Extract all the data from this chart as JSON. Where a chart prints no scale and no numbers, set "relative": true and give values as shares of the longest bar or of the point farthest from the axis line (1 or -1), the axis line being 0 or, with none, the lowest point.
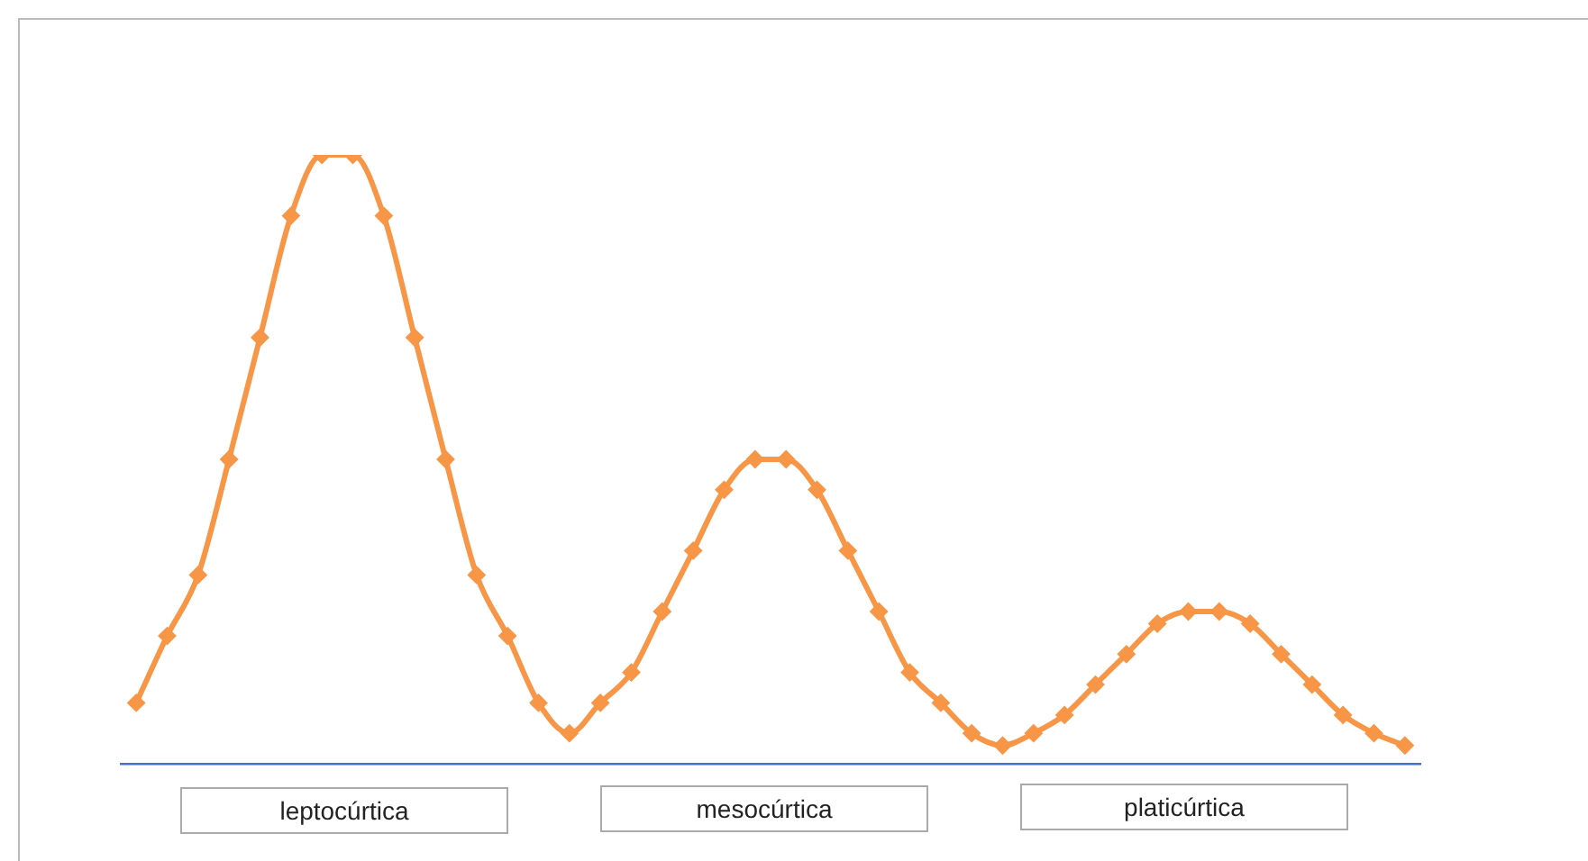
{
  "chart_data": {
    "type": "line",
    "relative": true,
    "marker": "diamond",
    "line_style": "solid",
    "grid": false,
    "legend": false,
    "categories": [
      null,
      null,
      null,
      null,
      null,
      null,
      null,
      null,
      null,
      null,
      null,
      null,
      null,
      null,
      null,
      null,
      null,
      null,
      null,
      null,
      null,
      null,
      null,
      null,
      null,
      null,
      null,
      null,
      null,
      null,
      null,
      null,
      null,
      null,
      null,
      null,
      null,
      null,
      null,
      null,
      null,
      null
    ],
    "series": [
      {
        "color": "#f79646",
        "values": [
          0.1,
          0.21,
          0.31,
          0.5,
          0.7,
          0.9,
          1,
          1,
          0.9,
          0.7,
          0.5,
          0.31,
          0.21,
          0.1,
          0.05,
          0.1,
          0.15,
          0.25,
          0.35,
          0.45,
          0.5,
          0.5,
          0.45,
          0.35,
          0.25,
          0.15,
          0.1,
          0.05,
          0.03,
          0.05,
          0.08,
          0.13,
          0.18,
          0.23,
          0.25,
          0.25,
          0.23,
          0.18,
          0.13,
          0.08,
          0.05,
          0.03
        ]
      }
    ],
    "annotations": [
      "leptocúrtica",
      "mesocúrtica",
      "platicúrtica"
    ]
  }
}
